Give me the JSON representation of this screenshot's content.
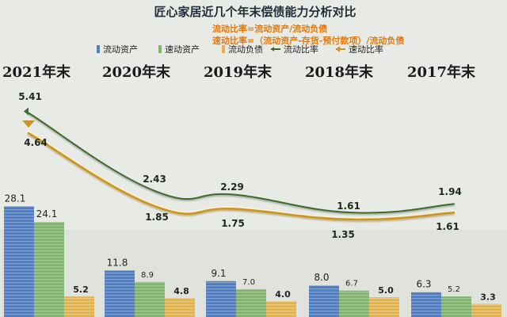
{
  "title": "匠心家居近几个年末偿债能力分析对比",
  "formulas": [
    "流动比率=流动资产/流动负债",
    "速动比率=（流动资产-存货-预付款项）/流动负债"
  ],
  "colors": {
    "current_assets": "#4f7ec4",
    "quick_assets": "#7fb56c",
    "current_liabilities": "#e2b34a",
    "current_ratio": "#3f6a2b",
    "quick_ratio": "#c99427",
    "title": "#1f2d3a",
    "formula": "#e07a10"
  },
  "chart_data": {
    "type": "bar",
    "categories": [
      "2021年末",
      "2020年末",
      "2019年末",
      "2018年末",
      "2017年末"
    ],
    "series": [
      {
        "name": "流动资产",
        "type": "bar",
        "values": [
          28.1,
          11.8,
          9.1,
          8.0,
          6.3
        ]
      },
      {
        "name": "速动资产",
        "type": "bar",
        "values": [
          24.1,
          8.9,
          7.0,
          6.7,
          5.2
        ]
      },
      {
        "name": "流动负债",
        "type": "bar",
        "values": [
          5.2,
          4.8,
          4.0,
          5.0,
          3.3
        ]
      },
      {
        "name": "流动比率",
        "type": "line",
        "values": [
          5.41,
          2.43,
          2.29,
          1.61,
          1.94
        ]
      },
      {
        "name": "速动比率",
        "type": "line",
        "values": [
          4.64,
          1.85,
          1.75,
          1.35,
          1.61
        ]
      }
    ],
    "title": "匠心家居近几个年末偿债能力分析对比",
    "xlabel": "",
    "ylabel": "",
    "legend_position": "top"
  }
}
